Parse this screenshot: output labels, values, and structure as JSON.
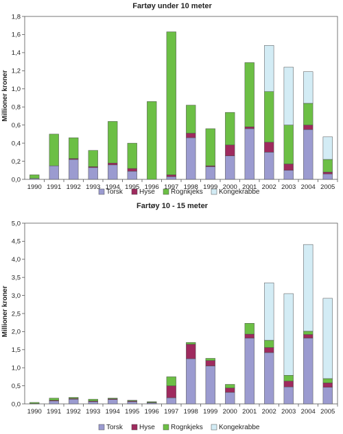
{
  "colors": {
    "Torsk": "#9b9bd0",
    "Hyse": "#9e2a5e",
    "Rognkjeks": "#6cbf45",
    "Kongekrabbe": "#d3ecf5"
  },
  "chart_data": [
    {
      "type": "bar",
      "stacked": true,
      "title": "Fartøy under 10 meter",
      "xlabel": "",
      "ylabel": "Millioner kroner",
      "ylim": [
        0,
        1.8
      ],
      "yticks": [
        "0,0",
        "0,2",
        "0,4",
        "0,6",
        "0,8",
        "1,0",
        "1,2",
        "1,4",
        "1,6",
        "1,8"
      ],
      "grid": false,
      "legend": "bottom",
      "categories": [
        "1990",
        "1991",
        "1992",
        "1993",
        "1994",
        "1995",
        "1996",
        "1997",
        "1998",
        "1999",
        "2000",
        "2001",
        "2002",
        "2003",
        "2004",
        "2005"
      ],
      "series": [
        {
          "name": "Torsk",
          "values": [
            0.01,
            0.15,
            0.22,
            0.13,
            0.16,
            0.09,
            0.0,
            0.03,
            0.46,
            0.14,
            0.26,
            0.56,
            0.3,
            0.1,
            0.55,
            0.06
          ]
        },
        {
          "name": "Hyse",
          "values": [
            0.0,
            0.0,
            0.01,
            0.01,
            0.02,
            0.03,
            0.0,
            0.02,
            0.05,
            0.01,
            0.12,
            0.02,
            0.11,
            0.07,
            0.05,
            0.02
          ]
        },
        {
          "name": "Rognkjeks",
          "values": [
            0.04,
            0.35,
            0.23,
            0.18,
            0.46,
            0.28,
            0.86,
            1.58,
            0.31,
            0.41,
            0.36,
            0.71,
            0.56,
            0.43,
            0.24,
            0.14
          ]
        },
        {
          "name": "Kongekrabbe",
          "values": [
            0.0,
            0.0,
            0.0,
            0.0,
            0.0,
            0.0,
            0.0,
            0.0,
            0.0,
            0.0,
            0.0,
            0.0,
            0.51,
            0.64,
            0.35,
            0.25
          ]
        }
      ]
    },
    {
      "type": "bar",
      "stacked": true,
      "title": "Fartøy 10 - 15 meter",
      "xlabel": "",
      "ylabel": "Millioner kroner",
      "ylim": [
        0,
        5.0
      ],
      "yticks": [
        "0,0",
        "0,5",
        "1,0",
        "1,5",
        "2,0",
        "2,5",
        "3,0",
        "3,5",
        "4,0",
        "4,5",
        "5,0"
      ],
      "grid": false,
      "legend": "bottom",
      "categories": [
        "1990",
        "1991",
        "1992",
        "1993",
        "1994",
        "1995",
        "1996",
        "1997",
        "1998",
        "1999",
        "2000",
        "2001",
        "2002",
        "2003",
        "2004",
        "2005"
      ],
      "series": [
        {
          "name": "Torsk",
          "values": [
            0.01,
            0.08,
            0.13,
            0.06,
            0.12,
            0.06,
            0.03,
            0.17,
            1.25,
            1.05,
            0.32,
            1.82,
            1.42,
            0.47,
            1.82,
            0.46
          ]
        },
        {
          "name": "Hyse",
          "values": [
            0.0,
            0.02,
            0.02,
            0.02,
            0.02,
            0.02,
            0.01,
            0.33,
            0.4,
            0.15,
            0.12,
            0.11,
            0.14,
            0.16,
            0.1,
            0.12
          ]
        },
        {
          "name": "Rognkjeks",
          "values": [
            0.03,
            0.06,
            0.03,
            0.05,
            0.02,
            0.02,
            0.02,
            0.25,
            0.05,
            0.06,
            0.1,
            0.3,
            0.2,
            0.16,
            0.09,
            0.12
          ]
        },
        {
          "name": "Kongekrabbe",
          "values": [
            0.0,
            0.0,
            0.0,
            0.0,
            0.0,
            0.0,
            0.0,
            0.0,
            0.0,
            0.0,
            0.0,
            0.0,
            1.59,
            2.26,
            2.4,
            2.22
          ]
        }
      ]
    }
  ]
}
